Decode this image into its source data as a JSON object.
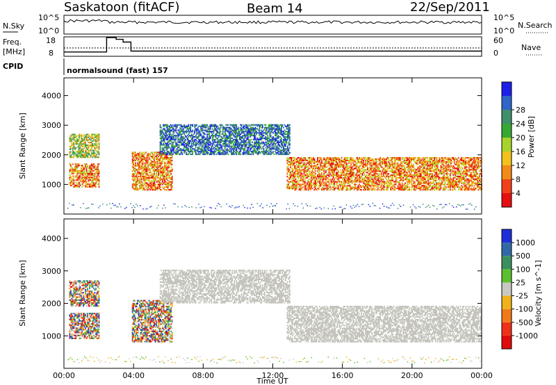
{
  "header": {
    "station": "Saskatoon (fitACF)",
    "beam": "Beam 14",
    "date": "22/Sep/2011"
  },
  "status_panels": {
    "nsky_label": "N.Sky",
    "nsearch_label": "N.Search",
    "freq_label_1": "Freq.",
    "freq_label_2": "[MHz]",
    "nave_label": "Nave",
    "cpid_label": "CPID",
    "cpid_value": "normalsound (fast) 157",
    "noise_left_ticks": [
      "10^5",
      "10^0"
    ],
    "noise_right_ticks": [
      "10^5",
      "10^0"
    ],
    "freq_left_ticks": [
      "18",
      "8"
    ],
    "nave_right_ticks": [
      "60",
      "0"
    ],
    "frequency_steps": [
      {
        "t": 0.0,
        "mhz": 10.0
      },
      {
        "t": 2.45,
        "mhz": 18.0
      },
      {
        "t": 3.0,
        "mhz": 17.0
      },
      {
        "t": 3.4,
        "mhz": 15.5
      },
      {
        "t": 3.85,
        "mhz": 10.5
      },
      {
        "t": 24.0,
        "mhz": 10.5
      }
    ]
  },
  "chart_data": [
    {
      "type": "heatmap",
      "quantity": "Power",
      "xlabel": "",
      "ylabel": "Slant Range [km]",
      "xlim": [
        0,
        24
      ],
      "ylim": [
        0,
        4600
      ],
      "y_ticks": [
        1000,
        2000,
        3000,
        4000
      ],
      "x_ticks": [
        0,
        4,
        8,
        12,
        16,
        20,
        24
      ],
      "colorbar": {
        "label": "Power [dB]",
        "ticks": [
          "4",
          "8",
          "12",
          "16",
          "20",
          "24",
          "28"
        ],
        "colors": [
          "#1e1eea",
          "#2f64c8",
          "#3f8f6a",
          "#37a832",
          "#a6d42b",
          "#f0c21b",
          "#f28a18",
          "#f2401a",
          "#e60f0f"
        ]
      },
      "echo_regions": [
        {
          "from_h": 0.3,
          "to_h": 2.0,
          "range_km": [
            900,
            1700
          ],
          "level": "high"
        },
        {
          "from_h": 0.3,
          "to_h": 2.0,
          "range_km": [
            1900,
            2700
          ],
          "level": "mid"
        },
        {
          "from_h": 3.9,
          "to_h": 6.2,
          "range_km": [
            800,
            2100
          ],
          "level": "high"
        },
        {
          "from_h": 5.5,
          "to_h": 13.0,
          "range_km": [
            2000,
            3000
          ],
          "level": "low"
        },
        {
          "from_h": 12.8,
          "to_h": 24.0,
          "range_km": [
            800,
            1900
          ],
          "level": "high"
        }
      ]
    },
    {
      "type": "heatmap",
      "quantity": "Velocity",
      "xlabel": "Time UT",
      "ylabel": "Slant Range [km]",
      "xlim": [
        0,
        24
      ],
      "ylim": [
        0,
        4600
      ],
      "y_ticks": [
        1000,
        2000,
        3000,
        4000
      ],
      "x_ticks": [
        0,
        4,
        8,
        12,
        16,
        20,
        24
      ],
      "x_tick_labels": [
        "00:00",
        "04:00",
        "08:00",
        "12:00",
        "16:00",
        "20:00",
        "00:00"
      ],
      "colorbar": {
        "label": "Velocity [m s^-1]",
        "ticks": [
          "1000",
          "500",
          "100",
          "25",
          "-25",
          "-100",
          "-500",
          "-1000"
        ],
        "colors": [
          "#1f2fd8",
          "#2f6aa6",
          "#3a8f5c",
          "#5cc02e",
          "#c8c8c0",
          "#f0b21a",
          "#f07a18",
          "#f0301a",
          "#e00a0a"
        ]
      },
      "ground_scatter_color": "#c4c4bc"
    }
  ]
}
